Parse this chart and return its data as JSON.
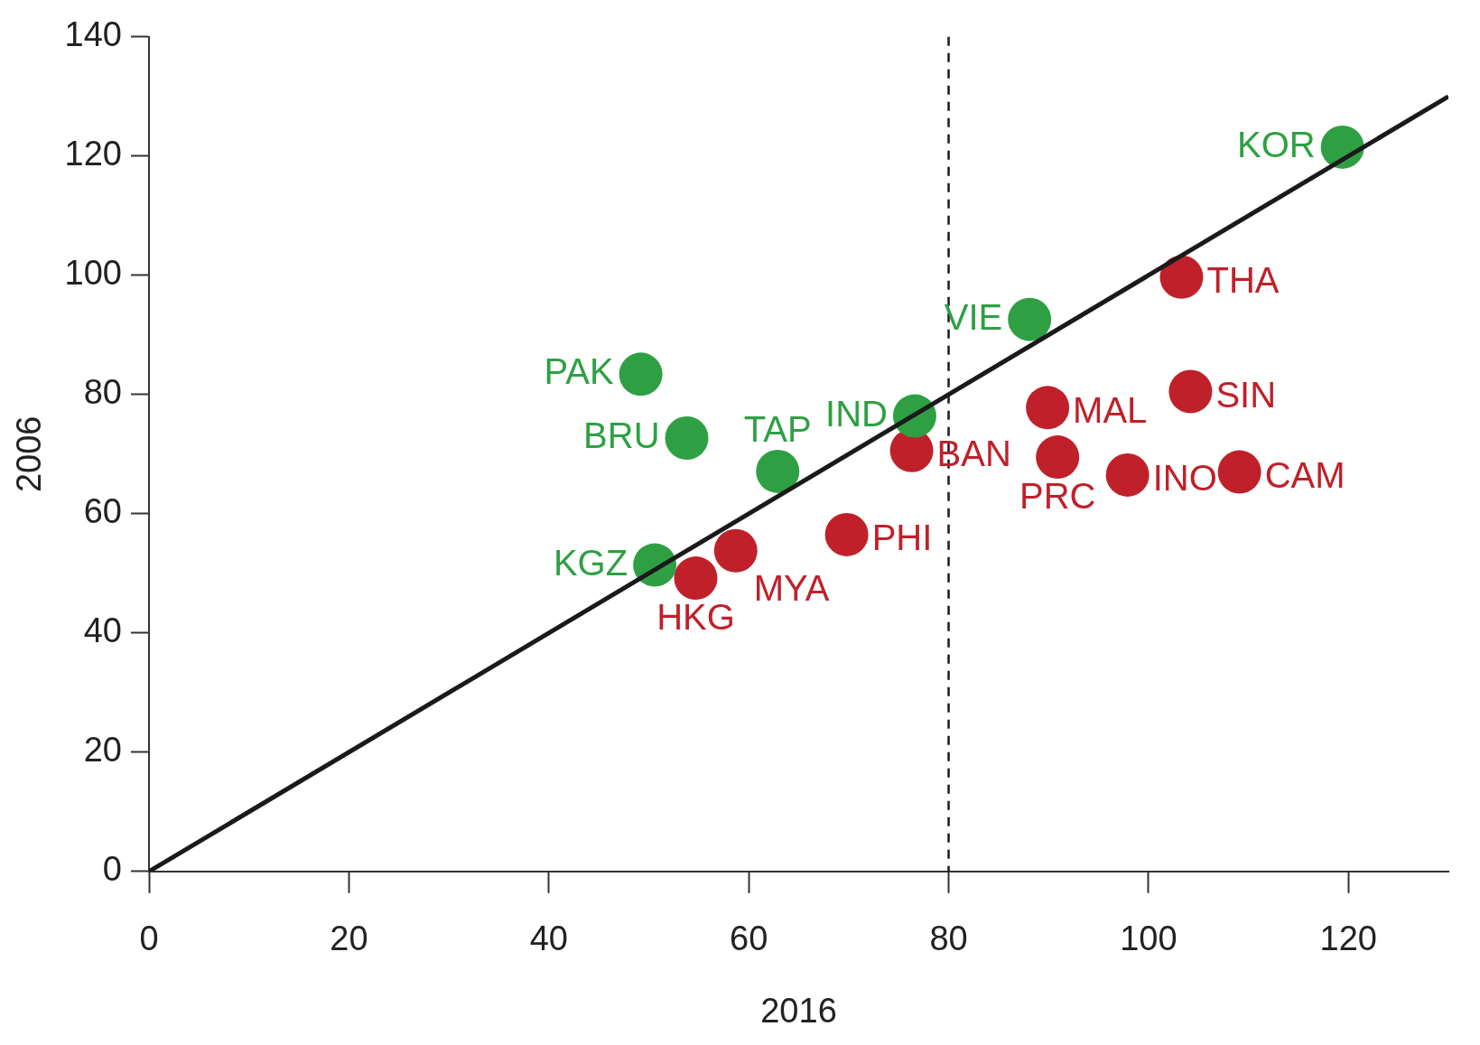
{
  "chart_data": {
    "type": "scatter",
    "xlabel": "2016",
    "ylabel": "2006",
    "xlim": [
      0,
      130
    ],
    "ylim": [
      0,
      140
    ],
    "xticks": [
      0,
      20,
      40,
      60,
      80,
      100,
      120
    ],
    "yticks": [
      0,
      20,
      40,
      60,
      80,
      100,
      120,
      140
    ],
    "grid": false,
    "legend": false,
    "marker": "circle",
    "series": [
      {
        "color": "#2ea043",
        "x": [
          49.2,
          53.8,
          62.9,
          50.6,
          76.6,
          88.1,
          119.4
        ],
        "values": [
          83.4,
          72.7,
          67.1,
          51.4,
          76.4,
          92.6,
          121.5
        ]
      },
      {
        "color": "#c0202a",
        "x": [
          54.7,
          58.7,
          69.8,
          76.3,
          89.9,
          90.9,
          97.9,
          109.1,
          104.2,
          103.3
        ],
        "values": [
          49.2,
          53.8,
          56.5,
          70.6,
          77.8,
          69.5,
          66.5,
          67.0,
          80.5,
          99.7
        ]
      },
      {
        "type": "line",
        "color": "#1a1a1a",
        "x": [
          0,
          130
        ],
        "values": [
          0,
          130
        ],
        "line_style": "solid",
        "marker": "none"
      }
    ],
    "ref_lines": [
      {
        "axis": "x",
        "value": 80,
        "color": "#1a1a1a",
        "line_style": "dashed"
      }
    ],
    "annotations": [
      {
        "text": "PAK",
        "x": 49.2,
        "y": 83.4
      },
      {
        "text": "BRU",
        "x": 53.8,
        "y": 72.7
      },
      {
        "text": "TAP",
        "x": 62.9,
        "y": 67.1
      },
      {
        "text": "KGZ",
        "x": 50.6,
        "y": 51.4
      },
      {
        "text": "IND",
        "x": 76.6,
        "y": 76.4
      },
      {
        "text": "VIE",
        "x": 88.1,
        "y": 92.6
      },
      {
        "text": "KOR",
        "x": 119.4,
        "y": 121.5
      },
      {
        "text": "HKG",
        "x": 54.7,
        "y": 49.2
      },
      {
        "text": "MYA",
        "x": 58.7,
        "y": 53.8
      },
      {
        "text": "PHI",
        "x": 69.8,
        "y": 56.5
      },
      {
        "text": "BAN",
        "x": 76.3,
        "y": 70.6
      },
      {
        "text": "MAL",
        "x": 89.9,
        "y": 77.8
      },
      {
        "text": "PRC",
        "x": 90.9,
        "y": 69.5
      },
      {
        "text": "INO",
        "x": 97.9,
        "y": 66.5
      },
      {
        "text": "CAM",
        "x": 109.1,
        "y": 67.0
      },
      {
        "text": "SIN",
        "x": 104.2,
        "y": 80.5
      },
      {
        "text": "THA",
        "x": 103.3,
        "y": 99.7
      }
    ]
  }
}
